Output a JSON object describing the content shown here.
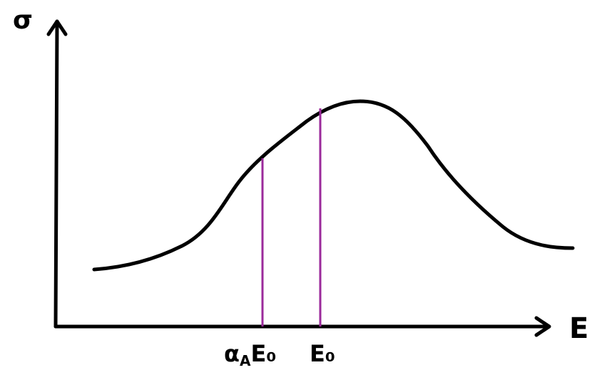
{
  "diagram": {
    "y_axis_label": "σ",
    "x_axis_label": "E",
    "marker_1_label_main": "α",
    "marker_1_label_sub": "A",
    "marker_1_label_tail": "E₀",
    "marker_2_label": "E₀",
    "colors": {
      "ink": "#000000",
      "marker": "#9b2a9b",
      "background": "#ffffff"
    }
  }
}
